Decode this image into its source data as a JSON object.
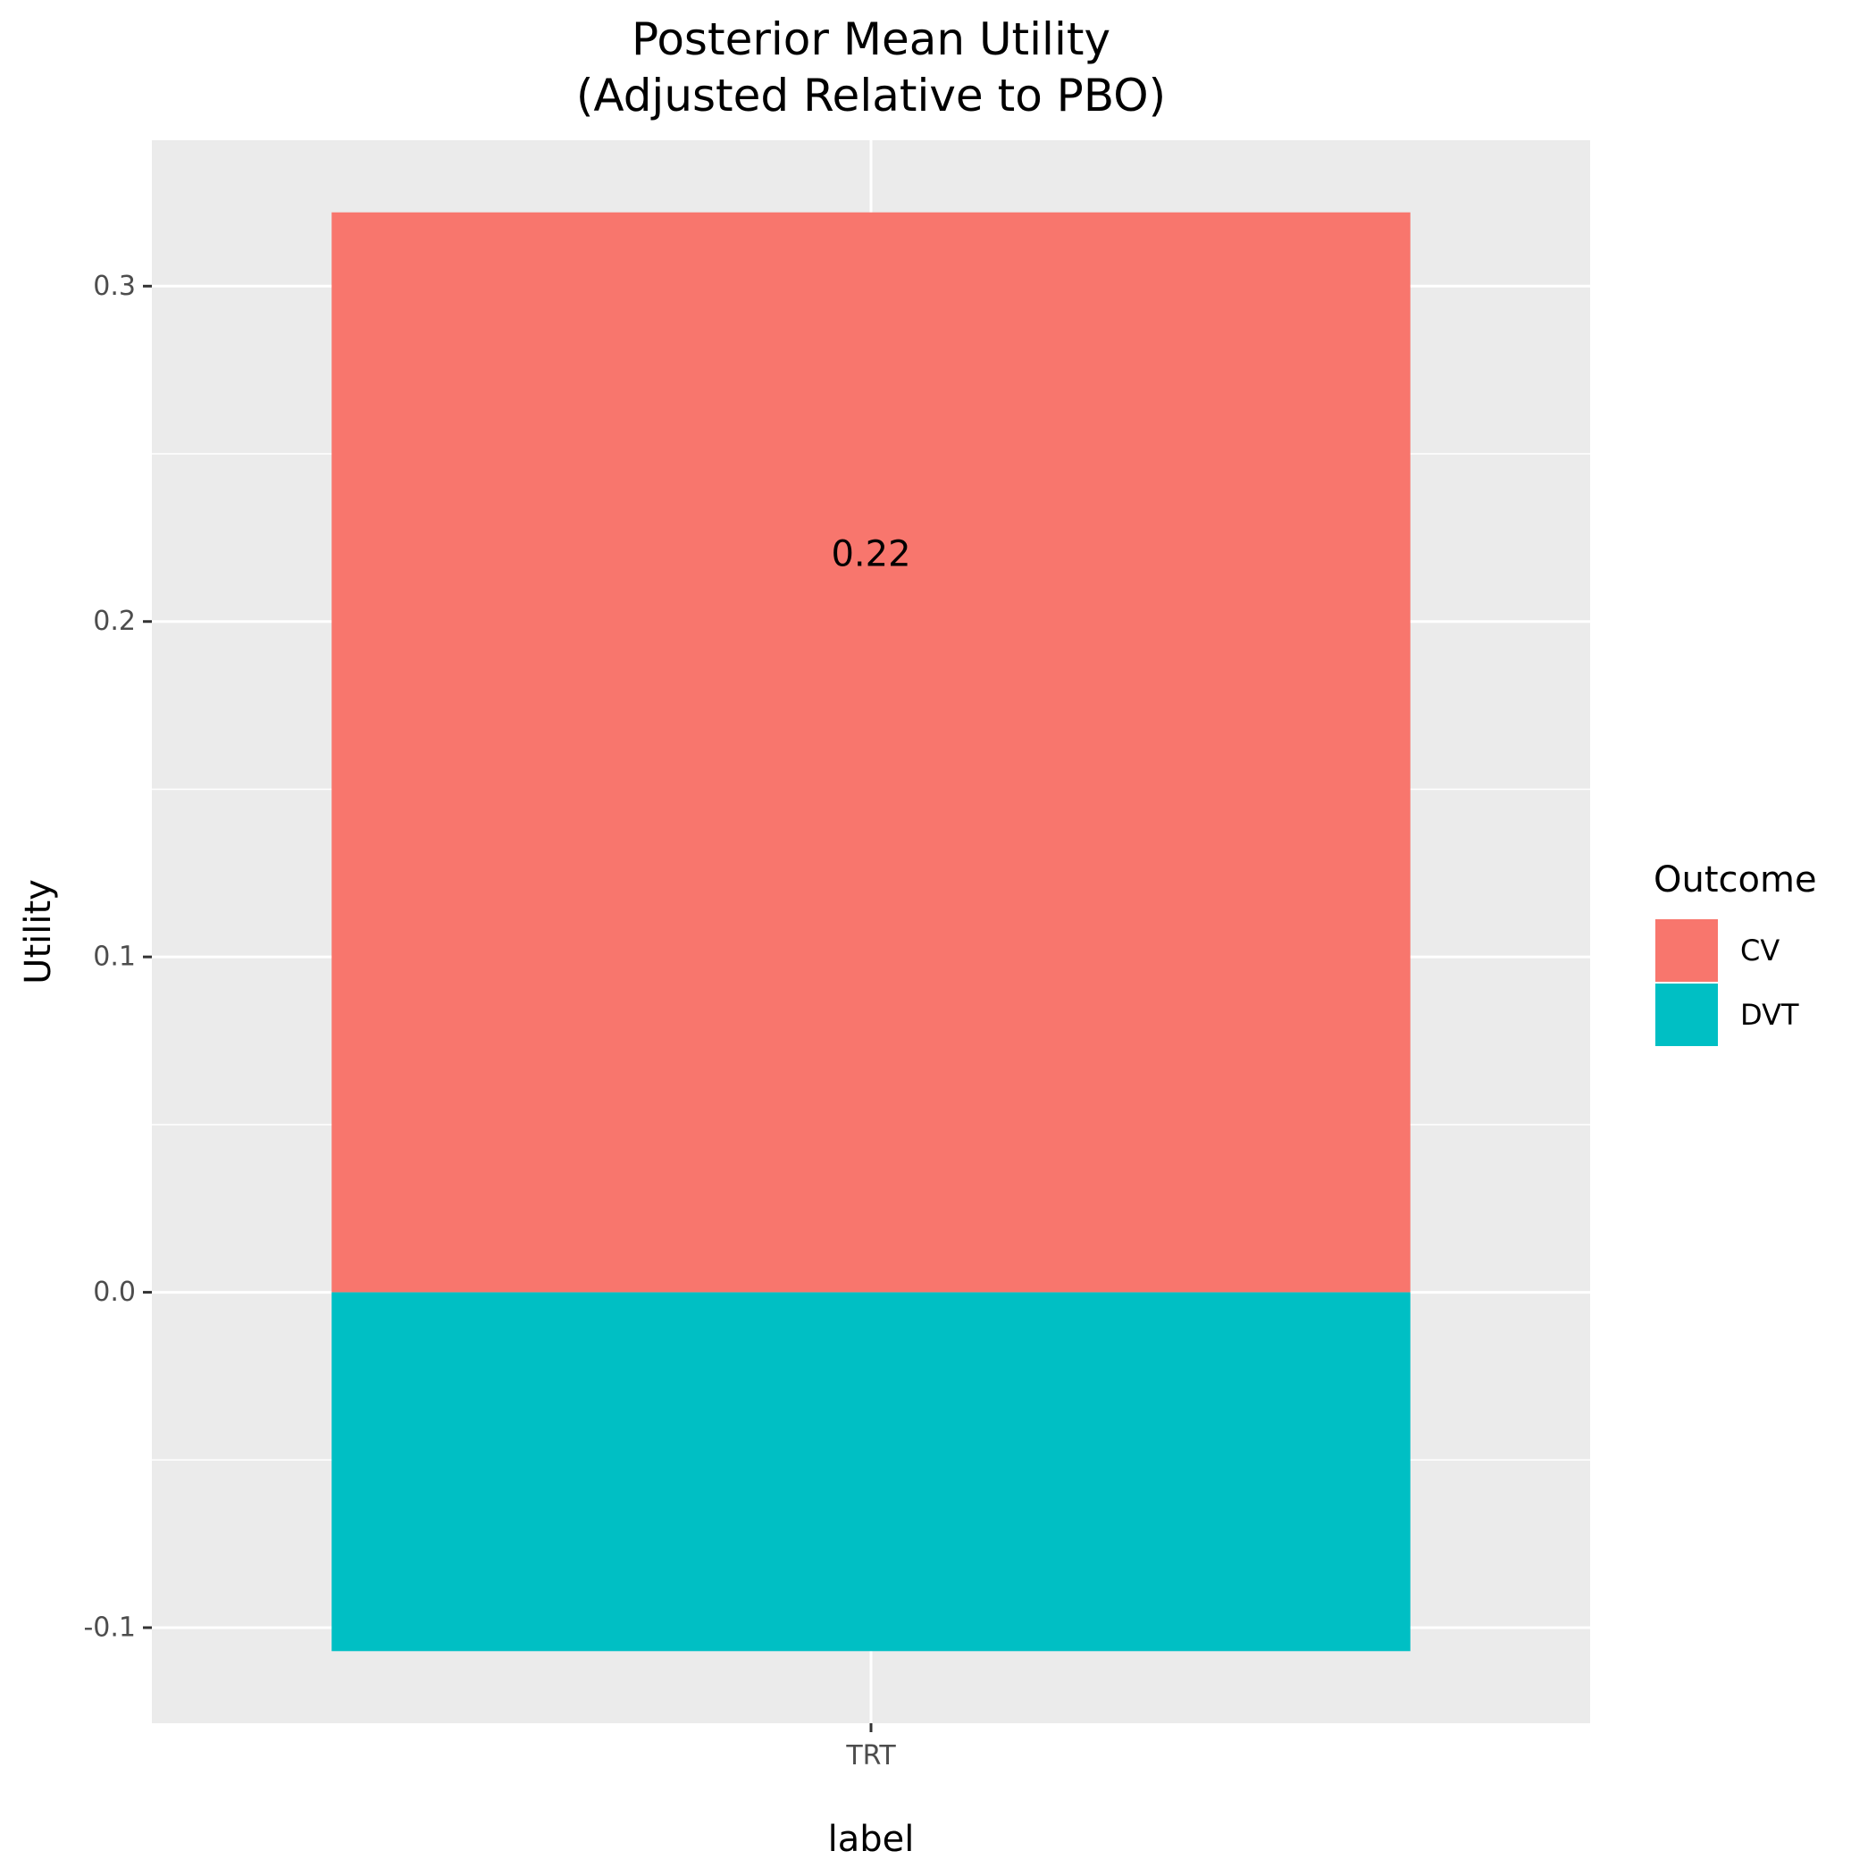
{
  "chart_data": {
    "type": "bar",
    "stacked": true,
    "title": "Posterior Mean Utility\n(Adjusted Relative to PBO)",
    "title_lines": [
      "Posterior Mean Utility",
      "(Adjusted Relative to PBO)"
    ],
    "xlabel": "label",
    "ylabel": "Utility",
    "categories": [
      "TRT"
    ],
    "series": [
      {
        "name": "CV",
        "values": [
          0.322
        ],
        "color": "#F8766D"
      },
      {
        "name": "DVT",
        "values": [
          -0.107
        ],
        "color": "#00BFC4"
      }
    ],
    "ylim": [
      -0.1285,
      0.3435
    ],
    "yticks": [
      -0.1,
      0.0,
      0.1,
      0.2,
      0.3
    ],
    "ytick_labels": [
      "-0.1",
      "0.0",
      "0.1",
      "0.2",
      "0.3"
    ],
    "annotations": [
      {
        "category": "TRT",
        "y": 0.22,
        "text": "0.22"
      }
    ],
    "legend": {
      "title": "Outcome",
      "position": "right"
    },
    "grid": true,
    "panel_background": "#EBEBEB",
    "grid_color": "#FFFFFF"
  }
}
